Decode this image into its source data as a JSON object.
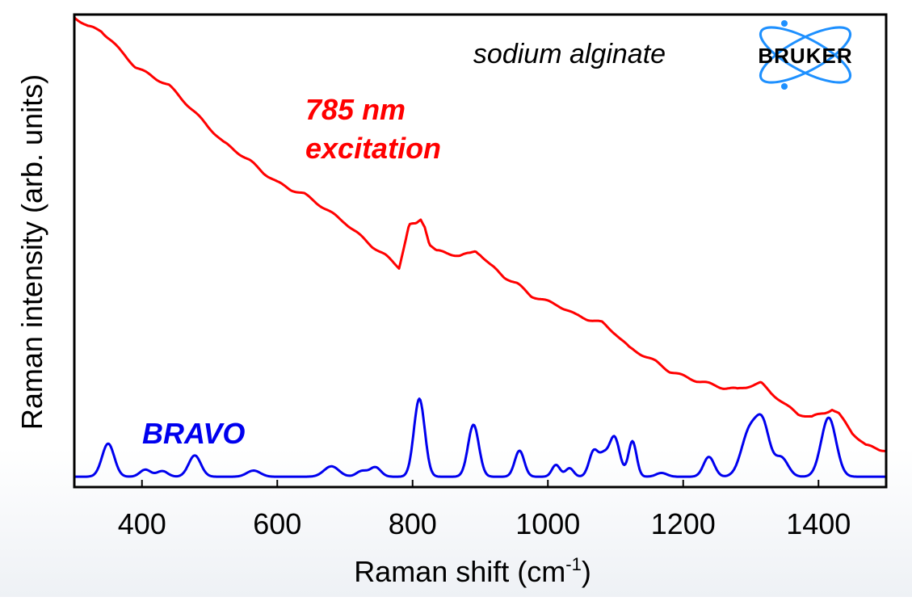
{
  "chart_data": {
    "type": "line",
    "title": "sodium alginate",
    "xlabel": "Raman shift (cm",
    "xlabel_sup": "-1",
    "xlabel_close": ")",
    "ylabel": "Raman intensity (arb. units)",
    "xlim": [
      300,
      1500
    ],
    "ylim": [
      0,
      100
    ],
    "xticks": [
      400,
      600,
      800,
      1000,
      1200,
      1400
    ],
    "grid": false,
    "annotations": {
      "excitation_line1": "785 nm",
      "excitation_line2": "excitation",
      "bravo": "BRAVO"
    },
    "series": [
      {
        "name": "785 nm excitation",
        "color": "#ff0000",
        "x": [
          300,
          310,
          320,
          340,
          355,
          370,
          390,
          420,
          440,
          460,
          480,
          500,
          520,
          540,
          560,
          580,
          600,
          620,
          640,
          660,
          680,
          700,
          720,
          740,
          760,
          780,
          795,
          805,
          812,
          818,
          825,
          835,
          850,
          870,
          885,
          893,
          900,
          915,
          935,
          955,
          975,
          995,
          1015,
          1040,
          1060,
          1080,
          1100,
          1120,
          1140,
          1160,
          1180,
          1200,
          1220,
          1240,
          1260,
          1280,
          1300,
          1315,
          1330,
          1350,
          1370,
          1390,
          1410,
          1420,
          1430,
          1450,
          1470,
          1490,
          1500
        ],
        "y": [
          99.5,
          98.5,
          97.5,
          96.5,
          94.5,
          92,
          89,
          86.5,
          85,
          82,
          79,
          76,
          73,
          71,
          69,
          66.5,
          64.5,
          63,
          62,
          60,
          58,
          56,
          53.5,
          51,
          49,
          46.5,
          55.5,
          55.6,
          56.6,
          55.2,
          51.5,
          50,
          49.5,
          49,
          49.4,
          50,
          49.3,
          47,
          44.5,
          43,
          40.5,
          39.5,
          38.5,
          36.5,
          35.5,
          34.8,
          32.5,
          29.5,
          28,
          26.5,
          24.5,
          23.5,
          22.5,
          21.8,
          21,
          20.7,
          21.5,
          22,
          20,
          17.5,
          15.5,
          14.8,
          15.8,
          16.5,
          15.5,
          11.5,
          8.8,
          8,
          7.8
        ]
      },
      {
        "name": "BRAVO",
        "color": "#0000ee",
        "peaks": [
          [
            350,
            7,
            9
          ],
          [
            405,
            1.5,
            8
          ],
          [
            430,
            1.2,
            8
          ],
          [
            478,
            4.5,
            9
          ],
          [
            565,
            1.3,
            10
          ],
          [
            680,
            2.2,
            11
          ],
          [
            725,
            1.2,
            8
          ],
          [
            745,
            2,
            8
          ],
          [
            810,
            16.5,
            8
          ],
          [
            890,
            11,
            8
          ],
          [
            958,
            5.5,
            7
          ],
          [
            1012,
            2.5,
            6
          ],
          [
            1032,
            1.8,
            6
          ],
          [
            1068,
            5.5,
            7
          ],
          [
            1082,
            3.5,
            6
          ],
          [
            1098,
            8.5,
            8
          ],
          [
            1125,
            7.5,
            6
          ],
          [
            1168,
            0.8,
            8
          ],
          [
            1238,
            4.2,
            8
          ],
          [
            1298,
            9.5,
            12
          ],
          [
            1318,
            10,
            10
          ],
          [
            1345,
            4,
            10
          ],
          [
            1415,
            12.5,
            11
          ]
        ]
      }
    ]
  },
  "logo": {
    "text": "BRUKER",
    "color": "#1e90ff"
  }
}
